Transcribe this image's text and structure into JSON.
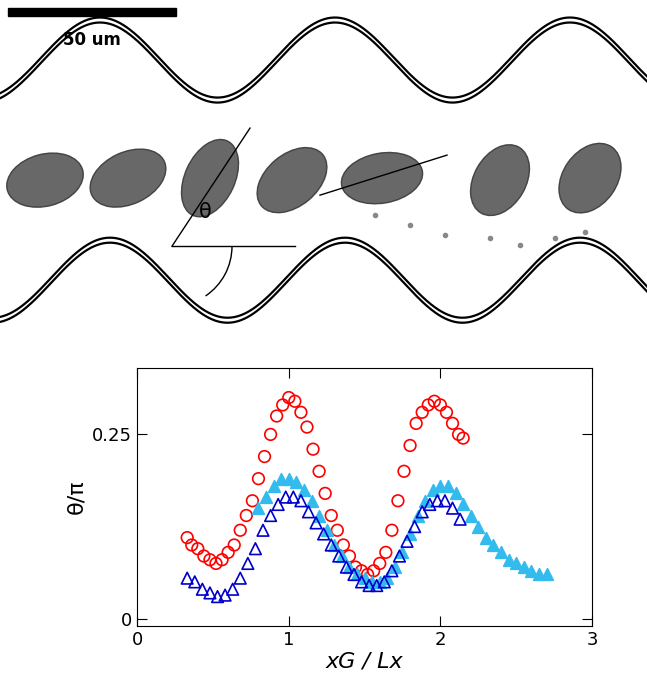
{
  "image": {
    "scale_bar": "50 um",
    "angle_label": "θ"
  },
  "chart_data": {
    "type": "scatter",
    "x_label": "xG / Lx",
    "y_label": "θ/π",
    "xlim": [
      0,
      3
    ],
    "xticks": [
      0,
      1,
      2,
      3
    ],
    "ylim": [
      -0.01,
      0.34
    ],
    "yticks": [
      0,
      0.25
    ],
    "series": [
      {
        "color": "#ff0000",
        "marker": "open_circle",
        "x": [
          0.33,
          0.36,
          0.4,
          0.44,
          0.48,
          0.52,
          0.56,
          0.6,
          0.64,
          0.68,
          0.72,
          0.76,
          0.8,
          0.84,
          0.88,
          0.92,
          0.96,
          1.0,
          1.04,
          1.08,
          1.12,
          1.16,
          1.2,
          1.24,
          1.28,
          1.32,
          1.36,
          1.4,
          1.44,
          1.48,
          1.52,
          1.56,
          1.6,
          1.64,
          1.68,
          1.72,
          1.76,
          1.8,
          1.84,
          1.88,
          1.92,
          1.96,
          2.0,
          2.04,
          2.08,
          2.12,
          2.15
        ],
        "values": [
          0.11,
          0.1,
          0.095,
          0.085,
          0.08,
          0.075,
          0.08,
          0.09,
          0.1,
          0.12,
          0.14,
          0.16,
          0.19,
          0.22,
          0.25,
          0.275,
          0.29,
          0.3,
          0.295,
          0.28,
          0.26,
          0.23,
          0.2,
          0.17,
          0.14,
          0.12,
          0.1,
          0.085,
          0.07,
          0.065,
          0.06,
          0.065,
          0.075,
          0.09,
          0.12,
          0.16,
          0.2,
          0.235,
          0.265,
          0.28,
          0.29,
          0.295,
          0.29,
          0.28,
          0.265,
          0.25,
          0.245
        ]
      },
      {
        "color": "#33bbee",
        "marker": "triangle",
        "x": [
          0.8,
          0.85,
          0.9,
          0.95,
          1.0,
          1.05,
          1.1,
          1.15,
          1.2,
          1.25,
          1.3,
          1.35,
          1.4,
          1.45,
          1.5,
          1.55,
          1.6,
          1.65,
          1.7,
          1.75,
          1.8,
          1.85,
          1.9,
          1.95,
          2.0,
          2.05,
          2.1,
          2.15,
          2.2,
          2.25,
          2.3,
          2.35,
          2.4,
          2.45,
          2.5,
          2.55,
          2.6,
          2.65,
          2.7
        ],
        "values": [
          0.15,
          0.165,
          0.18,
          0.19,
          0.19,
          0.185,
          0.175,
          0.16,
          0.14,
          0.12,
          0.1,
          0.085,
          0.07,
          0.06,
          0.055,
          0.05,
          0.05,
          0.055,
          0.07,
          0.09,
          0.115,
          0.14,
          0.16,
          0.175,
          0.18,
          0.18,
          0.17,
          0.155,
          0.14,
          0.125,
          0.11,
          0.1,
          0.09,
          0.08,
          0.075,
          0.07,
          0.065,
          0.06,
          0.06
        ]
      },
      {
        "color": "#0000cc",
        "marker": "open_triangle",
        "x": [
          0.33,
          0.38,
          0.43,
          0.48,
          0.53,
          0.58,
          0.63,
          0.68,
          0.73,
          0.78,
          0.83,
          0.88,
          0.93,
          0.98,
          1.03,
          1.08,
          1.13,
          1.18,
          1.23,
          1.28,
          1.33,
          1.38,
          1.43,
          1.48,
          1.53,
          1.58,
          1.63,
          1.68,
          1.73,
          1.78,
          1.83,
          1.88,
          1.93,
          1.98,
          2.03,
          2.08,
          2.13
        ],
        "values": [
          0.055,
          0.05,
          0.04,
          0.035,
          0.03,
          0.032,
          0.04,
          0.055,
          0.075,
          0.095,
          0.12,
          0.14,
          0.155,
          0.165,
          0.165,
          0.16,
          0.145,
          0.13,
          0.115,
          0.1,
          0.085,
          0.07,
          0.06,
          0.05,
          0.045,
          0.045,
          0.05,
          0.065,
          0.085,
          0.105,
          0.125,
          0.145,
          0.155,
          0.16,
          0.16,
          0.15,
          0.135
        ]
      }
    ]
  }
}
